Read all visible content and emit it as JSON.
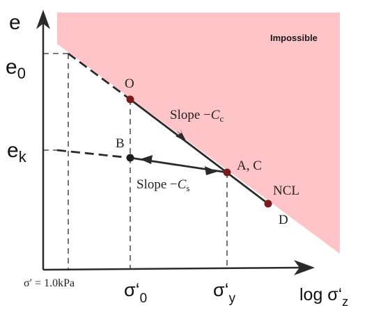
{
  "axes": {
    "y_label": "e",
    "y_tick_e0": "e",
    "y_tick_e0_sub": "0",
    "y_tick_ek": "e",
    "y_tick_ek_sub": "k",
    "x_label_main": "log σ‘",
    "x_label_sub": "z",
    "x_tick_ref": "σ′ = 1.0kPa",
    "x_tick_s0": "σ‘",
    "x_tick_s0_sub": "0",
    "x_tick_sy": "σ‘",
    "x_tick_sy_sub": "y"
  },
  "region": {
    "label": "Impossible",
    "color": "#ffc4c8"
  },
  "points": {
    "O": "O",
    "B": "B",
    "AC": "A, C",
    "D": "D"
  },
  "lines": {
    "ncl_label": "NCL",
    "slope_cc_prefix": "Slope −",
    "slope_cc_var": "C",
    "slope_cc_sub": "c",
    "slope_cs_prefix": "Slope −",
    "slope_cs_var": "C",
    "slope_cs_sub": "s"
  },
  "colors": {
    "line": "#2a2a2a",
    "point_red": "#7a1a1a",
    "point_dark": "#1e1e1e"
  }
}
